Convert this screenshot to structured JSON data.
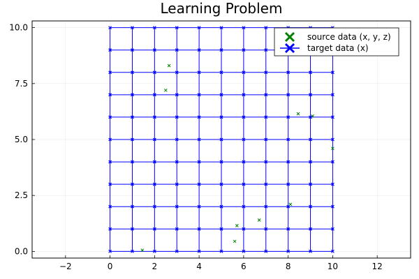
{
  "chart_data": {
    "type": "scatter",
    "title": "Learning Problem",
    "xlabel": "",
    "ylabel": "",
    "xlim": [
      -3.5,
      13.5
    ],
    "ylim": [
      -0.3,
      10.3
    ],
    "xticks": [
      -2,
      0,
      2,
      4,
      6,
      8,
      10,
      12
    ],
    "yticks": [
      0.0,
      2.5,
      5.0,
      7.5,
      10.0
    ],
    "xtick_labels": [
      "−2",
      "0",
      "2",
      "4",
      "6",
      "8",
      "10",
      "12"
    ],
    "ytick_labels": [
      "0.0",
      "2.5",
      "5.0",
      "7.5",
      "10.0"
    ],
    "grid": true,
    "legend_position": "top-right",
    "series": [
      {
        "name": "source data (x, y, z)",
        "color": "#008000",
        "marker": "x",
        "x": [
          2.65,
          2.5,
          8.45,
          9.1,
          10.0,
          8.1,
          6.7,
          5.7,
          5.6,
          1.45
        ],
        "y": [
          8.3,
          7.2,
          6.15,
          6.05,
          4.6,
          2.1,
          1.4,
          1.15,
          0.45,
          0.05
        ]
      },
      {
        "name": "target data (x)",
        "color": "#0000ff",
        "marker": "x",
        "grid_lines": true,
        "x_range": [
          0,
          10
        ],
        "y_range": [
          0,
          10
        ],
        "step": 1
      }
    ]
  }
}
